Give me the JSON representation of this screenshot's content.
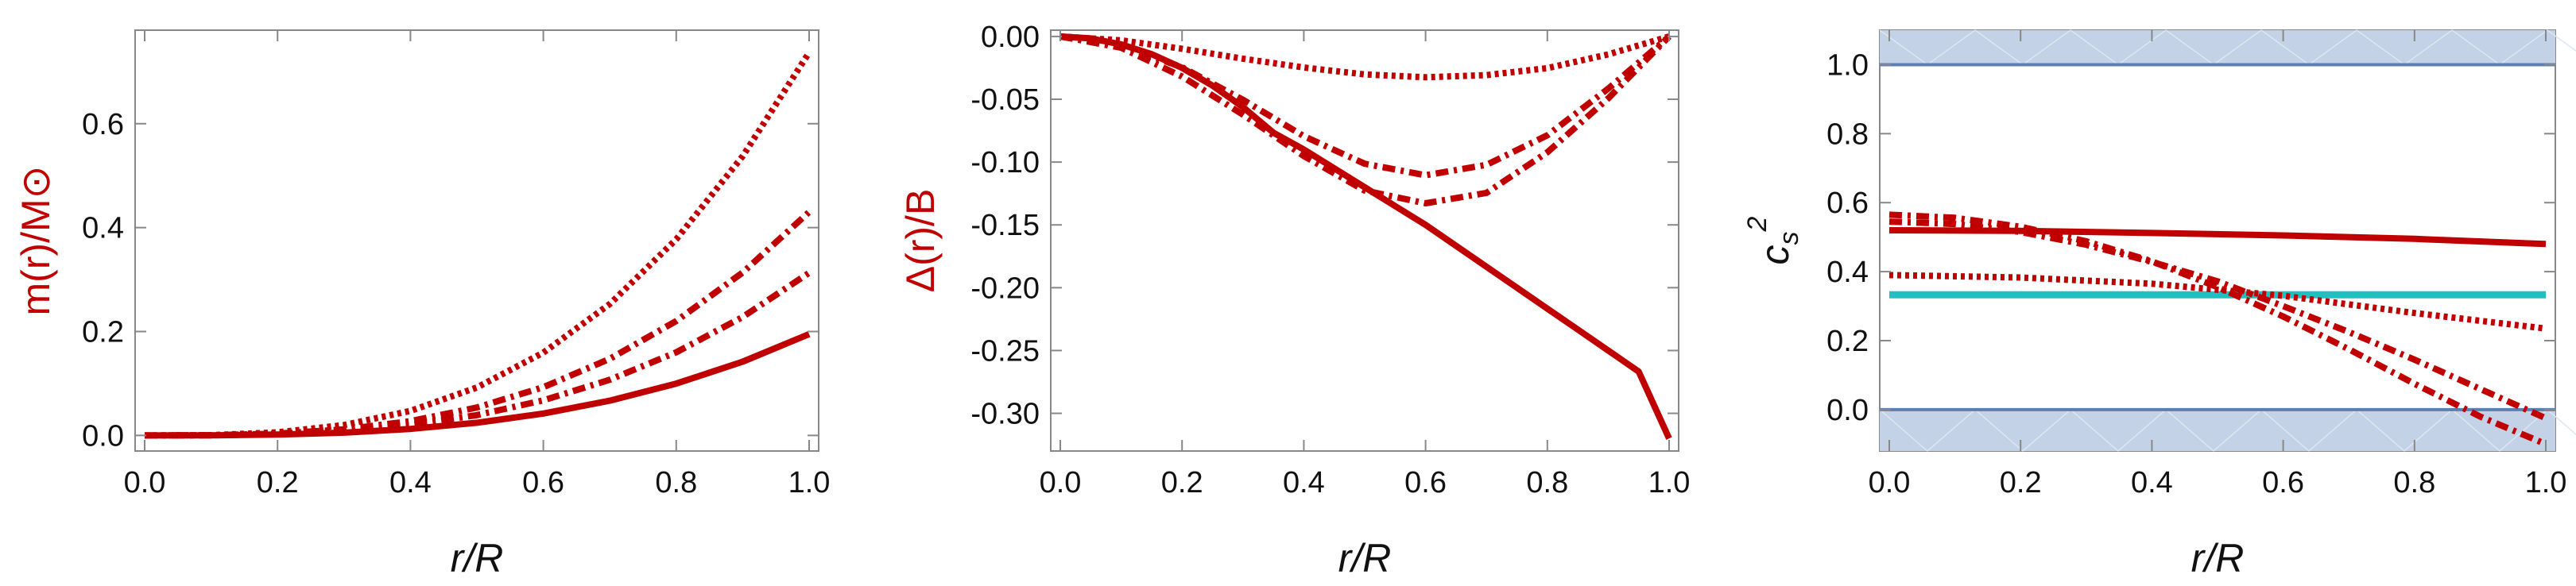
{
  "chart_data": [
    {
      "type": "line",
      "title": "",
      "xlabel": "r/R",
      "ylabel": "m(r)/M⊙",
      "xlim": [
        0,
        1
      ],
      "ylim": [
        -0.03,
        0.78
      ],
      "xticks": [
        "0.0",
        "0.2",
        "0.4",
        "0.6",
        "0.8",
        "1.0"
      ],
      "yticks": [
        "0.0",
        "0.2",
        "0.4",
        "0.6"
      ],
      "series": [
        {
          "name": "solid",
          "style": "solid",
          "color": "#c00000",
          "x": [
            0,
            0.1,
            0.2,
            0.3,
            0.4,
            0.5,
            0.6,
            0.7,
            0.8,
            0.9,
            1.0
          ],
          "y": [
            0,
            0.0002,
            0.0016,
            0.0053,
            0.0125,
            0.0244,
            0.0421,
            0.0669,
            0.0998,
            0.142,
            0.195
          ]
        },
        {
          "name": "dash-dot-1",
          "style": "dashdot",
          "color": "#c00000",
          "x": [
            0,
            0.1,
            0.2,
            0.3,
            0.4,
            0.5,
            0.6,
            0.7,
            0.8,
            0.9,
            1.0
          ],
          "y": [
            0,
            0.0003,
            0.0025,
            0.0085,
            0.0201,
            0.0391,
            0.0675,
            0.1072,
            0.16,
            0.228,
            0.313
          ]
        },
        {
          "name": "dash-dot-2",
          "style": "dashdot",
          "color": "#c00000",
          "x": [
            0,
            0.1,
            0.2,
            0.3,
            0.4,
            0.5,
            0.6,
            0.7,
            0.8,
            0.9,
            1.0
          ],
          "y": [
            0,
            0.0004,
            0.0034,
            0.0116,
            0.0275,
            0.0538,
            0.0929,
            0.1475,
            0.2202,
            0.3135,
            0.43
          ]
        },
        {
          "name": "dotted",
          "style": "dotted",
          "color": "#c00000",
          "x": [
            0,
            0.1,
            0.2,
            0.3,
            0.4,
            0.5,
            0.6,
            0.7,
            0.8,
            0.9,
            1.0
          ],
          "y": [
            0,
            0.0006,
            0.0059,
            0.0199,
            0.0472,
            0.0922,
            0.1593,
            0.2529,
            0.3775,
            0.5374,
            0.737
          ]
        }
      ]
    },
    {
      "type": "line",
      "title": "",
      "xlabel": "r/R",
      "ylabel": "Δ(r)/B",
      "xlim": [
        0,
        1
      ],
      "ylim": [
        -0.33,
        0.005
      ],
      "xticks": [
        "0.0",
        "0.2",
        "0.4",
        "0.6",
        "0.8",
        "1.0"
      ],
      "yticks": [
        "0.00",
        "-0.05",
        "-0.10",
        "-0.15",
        "-0.20",
        "-0.25",
        "-0.30"
      ],
      "series": [
        {
          "name": "solid",
          "style": "solid",
          "color": "#c00000",
          "x": [
            0,
            0.05,
            0.1,
            0.15,
            0.2,
            0.25,
            0.3,
            0.35,
            0.4,
            0.45,
            0.5,
            0.55,
            0.6,
            0.65,
            0.7,
            0.75,
            0.8,
            0.85,
            0.9,
            0.95,
            1.0
          ],
          "y": [
            0,
            -0.0016,
            -0.0063,
            -0.0141,
            -0.025,
            -0.0391,
            -0.0562,
            -0.0766,
            -0.09,
            -0.105,
            -0.12,
            -0.135,
            -0.15,
            -0.1667,
            -0.1833,
            -0.2,
            -0.2167,
            -0.2333,
            -0.25,
            -0.2667,
            -0.32
          ]
        },
        {
          "name": "dash-dot-1",
          "style": "dashdot",
          "color": "#c00000",
          "x": [
            0,
            0.1,
            0.2,
            0.3,
            0.4,
            0.5,
            0.6,
            0.7,
            0.8,
            0.9,
            1.0
          ],
          "y": [
            0,
            -0.009,
            -0.0319,
            -0.0622,
            -0.0952,
            -0.1227,
            -0.1328,
            -0.1245,
            -0.0922,
            -0.0493,
            0
          ]
        },
        {
          "name": "dash-dot-2",
          "style": "dashdot",
          "color": "#c00000",
          "x": [
            0,
            0.1,
            0.2,
            0.3,
            0.4,
            0.5,
            0.6,
            0.7,
            0.8,
            0.9,
            1.0
          ],
          "y": [
            0,
            -0.0071,
            -0.0245,
            -0.0504,
            -0.0794,
            -0.1013,
            -0.1105,
            -0.1022,
            -0.0787,
            -0.0415,
            0
          ]
        },
        {
          "name": "dotted",
          "style": "dotted",
          "color": "#c00000",
          "x": [
            0,
            0.1,
            0.2,
            0.3,
            0.4,
            0.5,
            0.6,
            0.7,
            0.8,
            0.9,
            1.0
          ],
          "y": [
            0,
            -0.0031,
            -0.0098,
            -0.0177,
            -0.0247,
            -0.0302,
            -0.0325,
            -0.0308,
            -0.0252,
            -0.0143,
            0
          ]
        }
      ]
    },
    {
      "type": "line",
      "title": "",
      "xlabel": "r/R",
      "ylabel": "c_s^2",
      "xlim": [
        0,
        1
      ],
      "ylim": [
        -0.12,
        1.1
      ],
      "xticks": [
        "0.0",
        "0.2",
        "0.4",
        "0.6",
        "0.8",
        "1.0"
      ],
      "yticks": [
        "0.0",
        "0.2",
        "0.4",
        "0.6",
        "0.8",
        "1.0"
      ],
      "bands": [
        {
          "from": -0.12,
          "to": 0.0
        },
        {
          "from": 1.0,
          "to": 1.1
        }
      ],
      "hlines": [
        {
          "y": 1.0,
          "color": "#5b7fb3"
        },
        {
          "y": 0.0,
          "color": "#5b7fb3"
        },
        {
          "y": 0.333,
          "color": "#20c0c0"
        }
      ],
      "series": [
        {
          "name": "solid",
          "style": "solid",
          "color": "#c00000",
          "x": [
            0,
            0.2,
            0.4,
            0.6,
            0.8,
            1.0
          ],
          "y": [
            0.52,
            0.518,
            0.512,
            0.505,
            0.495,
            0.48
          ]
        },
        {
          "name": "dash-dot-1",
          "style": "dashdot",
          "color": "#c00000",
          "x": [
            0,
            0.1,
            0.2,
            0.3,
            0.4,
            0.5,
            0.6,
            0.7,
            0.8,
            0.9,
            1.0
          ],
          "y": [
            0.565,
            0.556,
            0.53,
            0.488,
            0.43,
            0.355,
            0.27,
            0.175,
            0.075,
            -0.02,
            -0.1
          ]
        },
        {
          "name": "dash-dot-2",
          "style": "dashdot",
          "color": "#c00000",
          "x": [
            0,
            0.1,
            0.2,
            0.3,
            0.4,
            0.5,
            0.6,
            0.7,
            0.8,
            0.9,
            1.0
          ],
          "y": [
            0.545,
            0.538,
            0.515,
            0.478,
            0.428,
            0.372,
            0.3,
            0.225,
            0.145,
            0.06,
            -0.025
          ]
        },
        {
          "name": "dotted",
          "style": "dotted",
          "color": "#c00000",
          "x": [
            0,
            0.2,
            0.4,
            0.6,
            0.8,
            1.0
          ],
          "y": [
            0.39,
            0.383,
            0.365,
            0.33,
            0.28,
            0.235
          ]
        }
      ]
    }
  ]
}
